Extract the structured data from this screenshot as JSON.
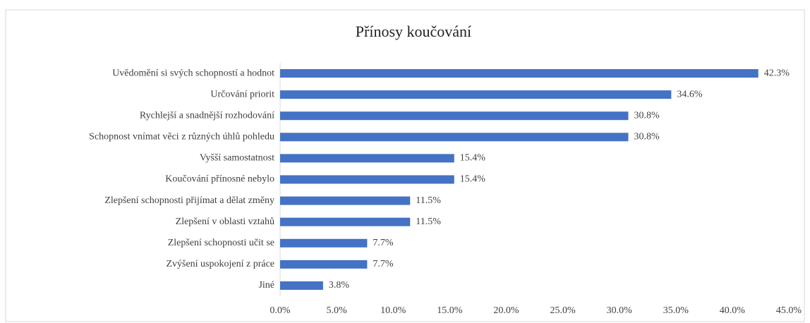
{
  "chart_data": {
    "type": "hbar",
    "title": "Přínosy koučování",
    "categories": [
      "Uvědomění si svých schopností a hodnot",
      "Určování priorit",
      "Rychlejší a snadnější rozhodování",
      "Schopnost vnímat věci z různých úhlů pohledu",
      "Vyšší samostatnost",
      "Koučování přínosné nebylo",
      "Zlepšení schopnosti přijímat a dělat změny",
      "Zlepšení v oblasti vztahů",
      "Zlepšení schopnosti učit se",
      "Zvýšení uspokojení z práce",
      "Jiné"
    ],
    "values": [
      42.3,
      34.6,
      30.8,
      30.8,
      15.4,
      15.4,
      11.5,
      11.5,
      7.7,
      7.7,
      3.8
    ],
    "value_labels": [
      "42.3%",
      "34.6%",
      "30.8%",
      "30.8%",
      "15.4%",
      "15.4%",
      "11.5%",
      "11.5%",
      "7.7%",
      "7.7%",
      "3.8%"
    ],
    "color": "#4472c4",
    "xlim": [
      0,
      45
    ],
    "xticks": [
      {
        "value": 0,
        "label": "0.0%"
      },
      {
        "value": 5,
        "label": "5.0%"
      },
      {
        "value": 10,
        "label": "10.0%"
      },
      {
        "value": 15,
        "label": "15.0%"
      },
      {
        "value": 20,
        "label": "20.0%"
      },
      {
        "value": 25,
        "label": "25.0%"
      },
      {
        "value": 30,
        "label": "30.0%"
      },
      {
        "value": 35,
        "label": "35.0%"
      },
      {
        "value": 40,
        "label": "40.0%"
      },
      {
        "value": 45,
        "label": "45.0%"
      }
    ],
    "grid": false
  }
}
